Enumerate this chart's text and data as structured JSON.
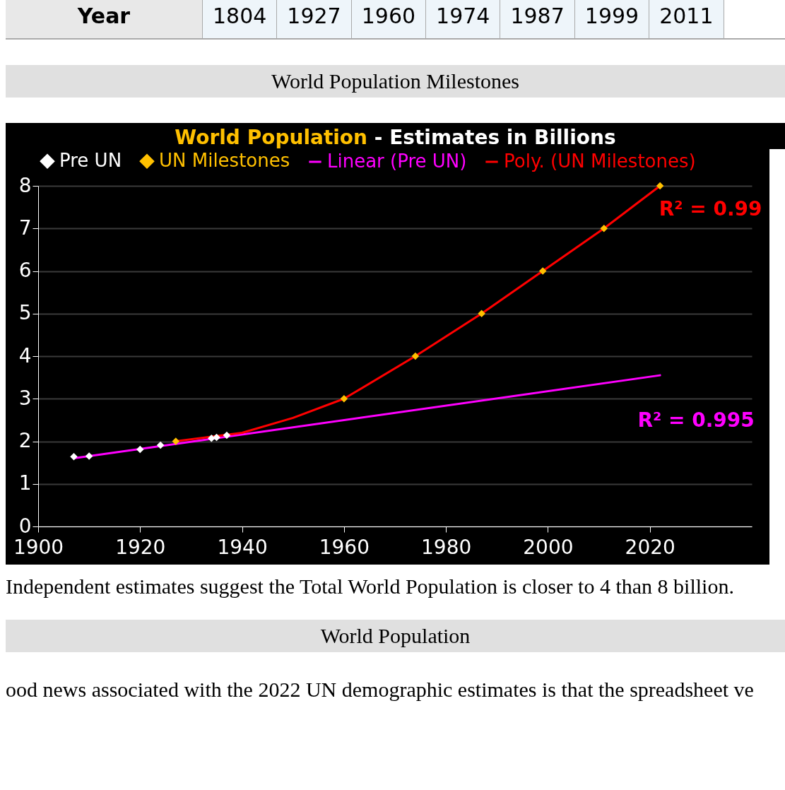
{
  "chart_data": {
    "type": "scatter",
    "title": "World Population",
    "subtitle": "- Estimates in Billions",
    "series": [
      {
        "name": "Pre UN",
        "color": "#ffffff",
        "marker": "diamond",
        "x": [
          1907,
          1910,
          1920,
          1924,
          1934,
          1935,
          1937
        ],
        "values": [
          1.64,
          1.65,
          1.81,
          1.91,
          2.07,
          2.09,
          2.14
        ]
      },
      {
        "name": "UN Milestones",
        "color": "#ffc000",
        "marker": "diamond",
        "x": [
          1927,
          1960,
          1974,
          1987,
          1999,
          2011,
          2022
        ],
        "values": [
          2.0,
          3.0,
          4.0,
          5.0,
          6.0,
          7.0,
          8.0
        ]
      },
      {
        "name": "Linear (Pre UN)",
        "color": "#ff00ff",
        "type": "line",
        "x": [
          1907,
          2022
        ],
        "values": [
          1.6,
          3.55
        ]
      },
      {
        "name": "Poly. (UN Milestones)",
        "color": "#ff0000",
        "type": "line",
        "x": [
          1927,
          1940,
          1950,
          1960,
          1974,
          1987,
          1999,
          2011,
          2022
        ],
        "values": [
          2.0,
          2.2,
          2.55,
          3.0,
          4.0,
          5.0,
          6.0,
          7.0,
          8.0
        ]
      }
    ],
    "xlim": [
      1900,
      2040
    ],
    "xticks": [
      1900,
      1920,
      1940,
      1960,
      1980,
      2000,
      2020
    ],
    "ylim": [
      0,
      8
    ],
    "yticks": [
      0,
      1,
      2,
      3,
      4,
      5,
      6,
      7,
      8
    ],
    "grid": "y",
    "legend": "top",
    "annotations": [
      "Year 1804 1927 1960 1974 1987 1999 2011",
      "World Population Milestones",
      "R² = 0.99",
      "R² = 0.995",
      "Independent estimates suggest the Total World Population is closer to 4 than 8 billion.",
      "World Population",
      "ood news associated with the 2022 UN demographic estimates is that the spreadsheet ve"
    ]
  }
}
